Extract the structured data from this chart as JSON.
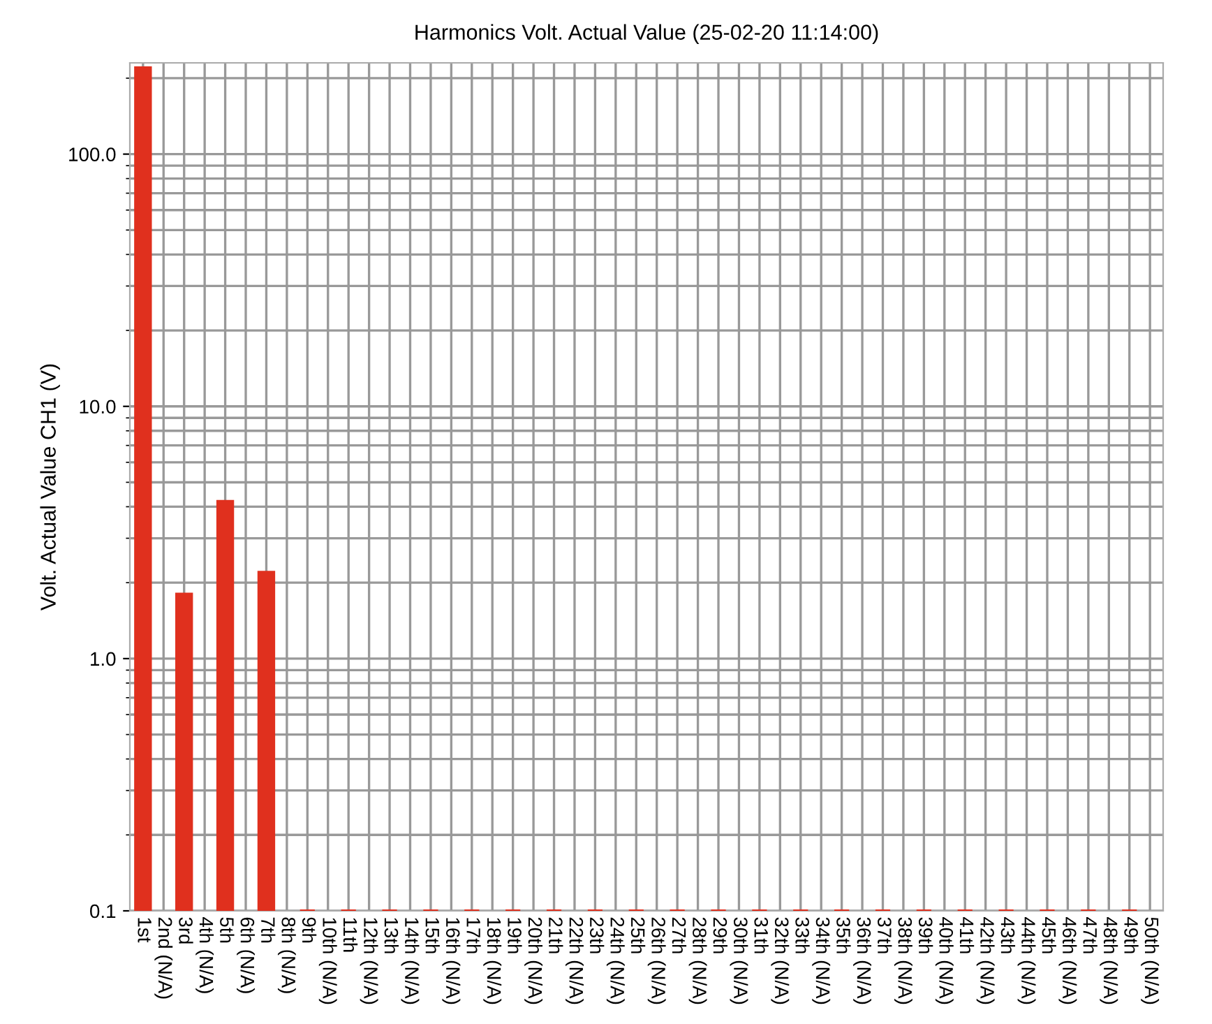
{
  "chart_data": {
    "type": "bar",
    "title": "Harmonics Volt. Actual Value (25-02-20 11:14:00)",
    "ylabel": "Volt. Actual Value CH1 (V)",
    "categories": [
      "1st",
      "2nd (N/A)",
      "3rd",
      "4th (N/A)",
      "5th",
      "6th (N/A)",
      "7th",
      "8th (N/A)",
      "9th",
      "10th (N/A)",
      "11th",
      "12th (N/A)",
      "13th",
      "14th (N/A)",
      "15th",
      "16th (N/A)",
      "17th",
      "18th (N/A)",
      "19th",
      "20th (N/A)",
      "21th",
      "22th (N/A)",
      "23th",
      "24th (N/A)",
      "25th",
      "26th (N/A)",
      "27th",
      "28th (N/A)",
      "29th",
      "30th (N/A)",
      "31th",
      "32th (N/A)",
      "33th",
      "34th (N/A)",
      "35th",
      "36th (N/A)",
      "37th",
      "38th (N/A)",
      "39th",
      "40th (N/A)",
      "41th",
      "42th (N/A)",
      "43th",
      "44th (N/A)",
      "45th",
      "46th (N/A)",
      "47th",
      "48th (N/A)",
      "49th",
      "50th (N/A)"
    ],
    "values": [
      220,
      null,
      1.8,
      null,
      4.2,
      null,
      2.2,
      null,
      0.1,
      null,
      0.1,
      null,
      0.1,
      null,
      0.1,
      null,
      0.1,
      null,
      0.1,
      null,
      0.1,
      null,
      0.1,
      null,
      0.1,
      null,
      0.1,
      null,
      0.1,
      null,
      0.1,
      null,
      0.1,
      null,
      0.1,
      null,
      0.1,
      null,
      0.1,
      null,
      0.1,
      null,
      0.1,
      null,
      0.1,
      null,
      0.1,
      null,
      0.1,
      null
    ],
    "color": "#e0301e",
    "log": true,
    "ylim": [
      0.1,
      230
    ],
    "yticks": [
      {
        "value": 0.1,
        "label": "0.1"
      },
      {
        "value": 1,
        "label": "1.0"
      },
      {
        "value": 10,
        "label": "10.0"
      },
      {
        "value": 100,
        "label": "100.0"
      }
    ],
    "grid": true,
    "legend": false
  }
}
